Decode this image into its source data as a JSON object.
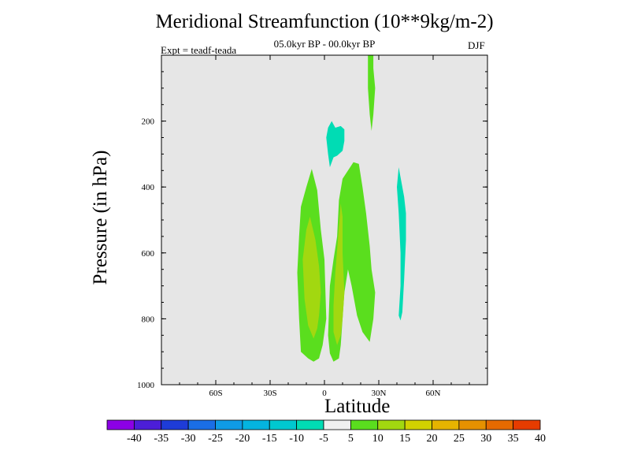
{
  "chart_data": {
    "type": "heatmap",
    "title": "Meridional Streamfunction (10**9kg/m-2)",
    "subtitle": "05.0kyr BP - 00.0kyr BP",
    "experiment": "Expt = teadf-teada",
    "season": "DJF",
    "xlabel": "Latitude",
    "ylabel": "Pressure (in hPa)",
    "xlim": [
      -90,
      90
    ],
    "ylim": [
      1000,
      0
    ],
    "x_ticks": [
      {
        "value": -60,
        "label": "60S"
      },
      {
        "value": -30,
        "label": "30S"
      },
      {
        "value": 0,
        "label": "0"
      },
      {
        "value": 30,
        "label": "30N"
      },
      {
        "value": 60,
        "label": "60N"
      }
    ],
    "y_ticks": [
      {
        "value": 200,
        "label": "200"
      },
      {
        "value": 400,
        "label": "400"
      },
      {
        "value": 600,
        "label": "600"
      },
      {
        "value": 800,
        "label": "800"
      },
      {
        "value": 1000,
        "label": "1000"
      }
    ],
    "background_color": "#e6e6e6",
    "colorbar": {
      "labels": [
        "-40",
        "-35",
        "-30",
        "-25",
        "-20",
        "-15",
        "-10",
        "-5",
        "5",
        "10",
        "15",
        "20",
        "25",
        "30",
        "35",
        "40"
      ],
      "colors": [
        "#8c00e6",
        "#4c1ed8",
        "#1e3cd8",
        "#1a6ee6",
        "#0f9be6",
        "#04b4e0",
        "#00c8d0",
        "#00dcb4",
        "#f0f0f0",
        "#5ade1e",
        "#a2d810",
        "#d2d200",
        "#e6b400",
        "#e69100",
        "#e66a00",
        "#e63c00"
      ]
    },
    "regions": [
      {
        "level": 5,
        "color": "#5ade1e",
        "description": "southern/equatorial positive cell",
        "points": [
          [
            -13,
            460
          ],
          [
            -10,
            400
          ],
          [
            -7,
            345
          ],
          [
            -4,
            410
          ],
          [
            -2,
            530
          ],
          [
            0,
            620
          ],
          [
            1,
            800
          ],
          [
            -1,
            880
          ],
          [
            -3,
            920
          ],
          [
            -6,
            930
          ],
          [
            -9,
            920
          ],
          [
            -13,
            900
          ],
          [
            -14,
            800
          ],
          [
            -15,
            660
          ],
          [
            -14,
            550
          ]
        ]
      },
      {
        "level": 5,
        "color": "#5ade1e",
        "description": "northern positive cell",
        "points": [
          [
            7,
            550
          ],
          [
            8,
            440
          ],
          [
            10,
            375
          ],
          [
            13,
            350
          ],
          [
            16,
            325
          ],
          [
            19,
            330
          ],
          [
            21,
            400
          ],
          [
            23,
            480
          ],
          [
            25,
            580
          ],
          [
            26,
            650
          ],
          [
            28,
            720
          ],
          [
            27,
            800
          ],
          [
            25,
            870
          ],
          [
            21,
            840
          ],
          [
            18,
            790
          ],
          [
            15,
            700
          ],
          [
            13,
            650
          ],
          [
            11,
            720
          ],
          [
            10,
            800
          ],
          [
            9,
            880
          ],
          [
            8,
            920
          ],
          [
            5,
            930
          ],
          [
            3,
            905
          ],
          [
            2,
            850
          ],
          [
            3,
            700
          ],
          [
            5,
            620
          ]
        ]
      },
      {
        "level": 5,
        "color": "#5ade1e",
        "description": "upper narrow positive cell",
        "points": [
          [
            24,
            0
          ],
          [
            27,
            0
          ],
          [
            27,
            40
          ],
          [
            28,
            100
          ],
          [
            27,
            180
          ],
          [
            26,
            230
          ],
          [
            25,
            180
          ],
          [
            24,
            100
          ]
        ]
      },
      {
        "level": 10,
        "color": "#a2d810",
        "description": "inner southern maximum",
        "points": [
          [
            -10,
            530
          ],
          [
            -8,
            490
          ],
          [
            -5,
            560
          ],
          [
            -3,
            640
          ],
          [
            -2,
            720
          ],
          [
            -3,
            790
          ],
          [
            -4,
            830
          ],
          [
            -6,
            860
          ],
          [
            -9,
            820
          ],
          [
            -11,
            740
          ],
          [
            -12,
            620
          ]
        ]
      },
      {
        "level": 10,
        "color": "#a2d810",
        "description": "inner northern maximum",
        "points": [
          [
            9,
            450
          ],
          [
            10,
            490
          ],
          [
            10,
            600
          ],
          [
            11,
            720
          ],
          [
            10,
            800
          ],
          [
            9,
            850
          ],
          [
            7,
            880
          ],
          [
            5,
            840
          ],
          [
            5,
            760
          ],
          [
            6,
            660
          ]
        ]
      },
      {
        "level": -5,
        "color": "#00dcb4",
        "description": "upper negative cell",
        "points": [
          [
            2,
            220
          ],
          [
            4,
            200
          ],
          [
            6,
            220
          ],
          [
            9,
            215
          ],
          [
            11,
            225
          ],
          [
            11,
            260
          ],
          [
            10,
            290
          ],
          [
            7,
            305
          ],
          [
            5,
            310
          ],
          [
            3,
            340
          ],
          [
            2,
            300
          ],
          [
            1,
            250
          ]
        ]
      },
      {
        "level": -5,
        "color": "#00dcb4",
        "description": "northern negative cell",
        "points": [
          [
            41,
            340
          ],
          [
            42,
            370
          ],
          [
            44,
            430
          ],
          [
            45,
            480
          ],
          [
            45,
            560
          ],
          [
            44,
            680
          ],
          [
            43,
            780
          ],
          [
            42,
            805
          ],
          [
            41,
            790
          ],
          [
            42,
            700
          ],
          [
            42,
            600
          ],
          [
            41,
            480
          ],
          [
            40,
            400
          ]
        ]
      }
    ]
  }
}
